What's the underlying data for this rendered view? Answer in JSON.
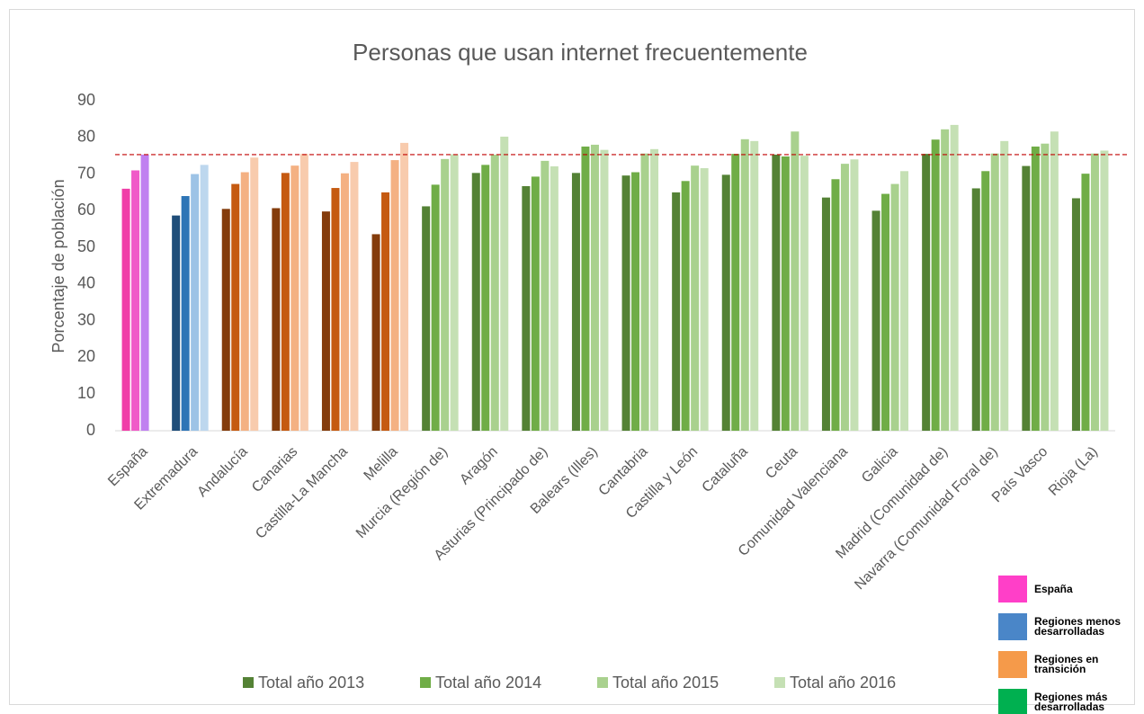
{
  "chart_data": {
    "type": "bar",
    "title": "Personas que usan internet frecuentemente",
    "y_label": "Porcentaje de población",
    "categories": [
      "España",
      "Extremadura",
      "Andalucía",
      "Canarias",
      "Castilla-La Mancha",
      "Melilla",
      "Murcia (Región de)",
      "Aragón",
      "Asturias (Principado de)",
      "Balears (Illes)",
      "Cantabria",
      "Castilla y León",
      "Cataluña",
      "Ceuta",
      "Comunidad Valenciana",
      "Galicia",
      "Madrid (Comunidad de)",
      "Navarra (Comunidad Foral de)",
      "País Vasco",
      "Rioja (La)"
    ],
    "series": [
      {
        "name": "Total año 2013",
        "color": "#548235",
        "values": [
          66,
          58.7,
          60.5,
          60.7,
          59.8,
          53.6,
          61.2,
          70.3,
          66.7,
          70.3,
          69.6,
          65,
          69.8,
          75.3,
          63.6,
          60,
          75.5,
          66.1,
          72.2,
          63.4
        ]
      },
      {
        "name": "Total año 2014",
        "color": "#70ad47",
        "values": [
          71,
          64,
          67.3,
          70.3,
          66.2,
          65,
          67.1,
          72.5,
          69.3,
          77.5,
          70.5,
          68.1,
          75.5,
          74.8,
          68.6,
          64.6,
          79.4,
          70.8,
          77.5,
          70.1
        ]
      },
      {
        "name": "Total año 2015",
        "color": "#a9d18e",
        "values": [
          75.3,
          70,
          70.5,
          72.3,
          70.2,
          73.8,
          74.1,
          75.3,
          73.6,
          78,
          75.6,
          72.3,
          79.5,
          81.6,
          72.8,
          67.3,
          82.2,
          75.6,
          78.3,
          75.6
        ]
      },
      {
        "name": "Total año 2016",
        "color": "#c5e0b4",
        "values": [
          null,
          72.5,
          74.5,
          75.5,
          73.3,
          78.5,
          75.4,
          80.2,
          72.1,
          76.6,
          76.8,
          71.6,
          79,
          75,
          74,
          70.8,
          83.4,
          79,
          81.6,
          76.4
        ]
      }
    ],
    "category_colors": [
      [
        "#f03ea8",
        "#f05ac8",
        "#c080f0",
        "#c080f0"
      ],
      [
        "#1f4e79",
        "#2e75b6",
        "#9dc3e6",
        "#bdd7ee"
      ],
      [
        "#843c0c",
        "#c55a11",
        "#f4b183",
        "#f8cbad"
      ],
      [
        "#843c0c",
        "#c55a11",
        "#f4b183",
        "#f8cbad"
      ],
      [
        "#843c0c",
        "#c55a11",
        "#f4b183",
        "#f8cbad"
      ],
      [
        "#843c0c",
        "#c55a11",
        "#f4b183",
        "#f8cbad"
      ],
      [
        "#548235",
        "#70ad47",
        "#a9d18e",
        "#c5e0b4"
      ],
      [
        "#548235",
        "#70ad47",
        "#a9d18e",
        "#c5e0b4"
      ],
      [
        "#548235",
        "#70ad47",
        "#a9d18e",
        "#c5e0b4"
      ],
      [
        "#548235",
        "#70ad47",
        "#a9d18e",
        "#c5e0b4"
      ],
      [
        "#548235",
        "#70ad47",
        "#a9d18e",
        "#c5e0b4"
      ],
      [
        "#548235",
        "#70ad47",
        "#a9d18e",
        "#c5e0b4"
      ],
      [
        "#548235",
        "#70ad47",
        "#a9d18e",
        "#c5e0b4"
      ],
      [
        "#548235",
        "#70ad47",
        "#a9d18e",
        "#c5e0b4"
      ],
      [
        "#548235",
        "#70ad47",
        "#a9d18e",
        "#c5e0b4"
      ],
      [
        "#548235",
        "#70ad47",
        "#a9d18e",
        "#c5e0b4"
      ],
      [
        "#548235",
        "#70ad47",
        "#a9d18e",
        "#c5e0b4"
      ],
      [
        "#548235",
        "#70ad47",
        "#a9d18e",
        "#c5e0b4"
      ],
      [
        "#548235",
        "#70ad47",
        "#a9d18e",
        "#c5e0b4"
      ],
      [
        "#548235",
        "#70ad47",
        "#a9d18e",
        "#c5e0b4"
      ]
    ],
    "reference_line": {
      "value": 75.3,
      "color": "#c00000"
    },
    "groups": [
      {
        "name": "España",
        "color": "#ff3fc8"
      },
      {
        "name": "Regiones menos desarrolladas",
        "color": "#4a86c8"
      },
      {
        "name": "Regiones en transición",
        "color": "#f59a4a"
      },
      {
        "name": "Regiones más desarrolladas",
        "color": "#00b050"
      }
    ],
    "ylim": [
      0,
      90
    ],
    "yticks": [
      0,
      10,
      20,
      30,
      40,
      50,
      60,
      70,
      80,
      90
    ],
    "grid": false,
    "legend": "bottom"
  }
}
